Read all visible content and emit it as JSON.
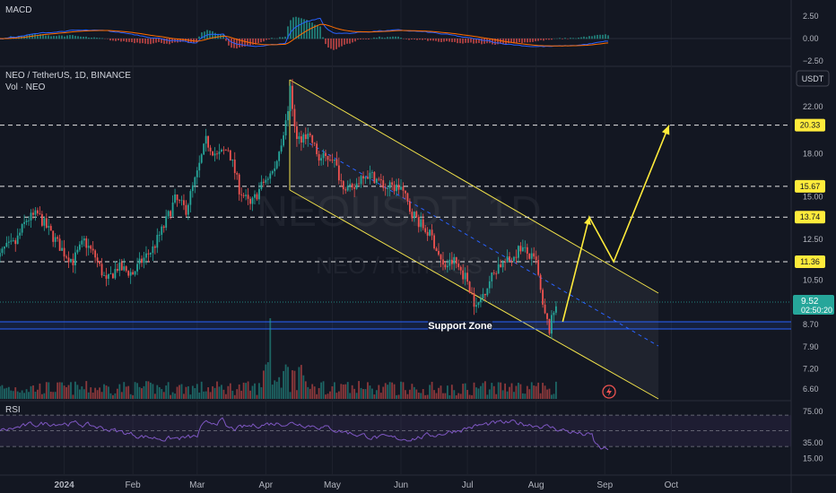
{
  "panels": {
    "macd_label": "MACD",
    "symbol_title": "NEO / TetherUS, 1D, BINANCE",
    "volume_label": "Vol · NEO",
    "rsi_label": "RSI",
    "currency": "USDT",
    "watermark_ticker": "NEOUSDT, 1D",
    "watermark_pair": "NEO / TetherUS"
  },
  "annotations": {
    "support_zone_label": "Support Zone",
    "current_price": "9.52",
    "countdown": "02:50:20"
  },
  "colors": {
    "background": "#131722",
    "up": "#26a69a",
    "down": "#ef5350",
    "channel": "#f0e14a",
    "support": "#2962ff",
    "projection": "#ffeb3b",
    "macd_line": "#2962ff",
    "signal_line": "#ff6d00",
    "rsi_line": "#7e57c2"
  },
  "chart_data": {
    "type": "candlestick",
    "x_tick_labels": [
      "2024",
      "Feb",
      "Mar",
      "Apr",
      "May",
      "Jun",
      "Jul",
      "Aug",
      "Sep",
      "Oct"
    ],
    "price_axis": {
      "scale": "log",
      "tick_labels": [
        "22.00",
        "18.00",
        "15.00",
        "12.50",
        "10.50",
        "8.70",
        "7.90",
        "7.20",
        "6.60"
      ],
      "range": [
        5.9,
        26.0
      ]
    },
    "horizontal_levels": [
      "20.33",
      "15.67",
      "13.74",
      "11.36"
    ],
    "support_zone": [
      8.45,
      8.75
    ],
    "price_series": {
      "x": [
        "2023-12-01",
        "2023-12-05",
        "2023-12-10",
        "2023-12-15",
        "2023-12-20",
        "2023-12-26",
        "2024-01-01",
        "2024-01-05",
        "2024-01-10",
        "2024-01-15",
        "2024-01-20",
        "2024-01-25",
        "2024-02-01",
        "2024-02-05",
        "2024-02-10",
        "2024-02-15",
        "2024-02-20",
        "2024-02-25",
        "2024-03-01",
        "2024-03-05",
        "2024-03-10",
        "2024-03-15",
        "2024-03-20",
        "2024-03-25",
        "2024-04-01",
        "2024-04-05",
        "2024-04-10",
        "2024-04-12",
        "2024-04-15",
        "2024-04-20",
        "2024-04-25",
        "2024-05-01",
        "2024-05-05",
        "2024-05-10",
        "2024-05-15",
        "2024-05-20",
        "2024-05-25",
        "2024-06-01",
        "2024-06-05",
        "2024-06-10",
        "2024-06-15",
        "2024-06-20",
        "2024-06-25",
        "2024-07-01",
        "2024-07-05",
        "2024-07-10",
        "2024-07-15",
        "2024-07-20",
        "2024-07-25",
        "2024-08-01",
        "2024-08-04",
        "2024-08-07",
        "2024-08-10"
      ],
      "close": [
        11.3,
        12.0,
        12.3,
        13.6,
        13.9,
        12.8,
        11.8,
        11.4,
        12.4,
        11.6,
        10.4,
        11.1,
        10.8,
        11.4,
        12.0,
        13.2,
        14.8,
        14.2,
        16.5,
        19.0,
        17.8,
        18.4,
        15.5,
        14.4,
        16.2,
        16.8,
        20.5,
        23.5,
        19.0,
        19.8,
        17.6,
        17.8,
        16.0,
        15.3,
        16.6,
        16.3,
        15.6,
        15.6,
        14.2,
        13.3,
        12.6,
        11.1,
        11.4,
        10.5,
        9.3,
        10.3,
        11.2,
        11.4,
        12.1,
        11.3,
        9.3,
        8.5,
        9.52
      ]
    },
    "projection_path": {
      "x": [
        "2024-08-13",
        "2024-08-25",
        "2024-09-05",
        "2024-09-30"
      ],
      "y": [
        8.8,
        13.74,
        11.36,
        20.33
      ]
    },
    "channel": {
      "upper": {
        "x": [
          "2024-04-01",
          "2024-08-29"
        ],
        "y": [
          25.5,
          10.2
        ]
      },
      "lower": {
        "x": [
          "2024-04-01",
          "2024-08-29"
        ],
        "y": [
          16.3,
          6.0
        ]
      }
    },
    "macd": {
      "tick_labels": [
        "2.50",
        "0.00",
        "−2.50"
      ],
      "range": [
        -3.2,
        3.8
      ]
    },
    "rsi": {
      "tick_labels": [
        "75.00",
        "35.00",
        "15.00"
      ],
      "range": [
        5,
        85
      ],
      "bands": [
        70,
        30
      ]
    }
  }
}
